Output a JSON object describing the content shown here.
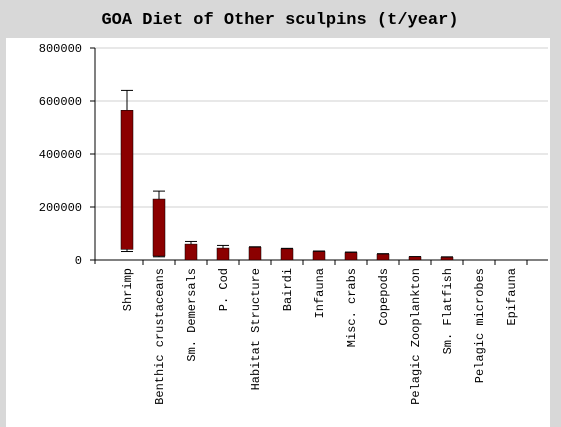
{
  "chart_data": {
    "type": "range-bar",
    "title": "GOA Diet of Other sculpins (t/year)",
    "categories": [
      "Shrimp",
      "Benthic crustaceans",
      "Sm. Demersals",
      "P. Cod",
      "Habitat Structure",
      "Bairdi",
      "Infauna",
      "Misc. crabs",
      "Copepods",
      "Pelagic Zooplankton",
      "Sm. Flatfish",
      "Pelagic microbes",
      "Epifauna"
    ],
    "low": [
      40000,
      15000,
      0,
      0,
      0,
      0,
      0,
      0,
      0,
      0,
      0,
      0,
      0
    ],
    "high": [
      565000,
      230000,
      60000,
      45000,
      48000,
      42000,
      32000,
      28000,
      22000,
      12000,
      10000,
      0,
      0
    ],
    "whisker_low": [
      32000,
      12000,
      0,
      0,
      0,
      0,
      0,
      0,
      0,
      0,
      0,
      0,
      0
    ],
    "whisker_high": [
      640000,
      260000,
      70000,
      55000,
      50000,
      44000,
      34000,
      30000,
      24000,
      13000,
      12000,
      0,
      0
    ],
    "color": "#8b0000",
    "ylim": [
      0,
      800000
    ],
    "yticks": [
      0,
      200000,
      400000,
      600000,
      800000
    ],
    "grid": true
  }
}
